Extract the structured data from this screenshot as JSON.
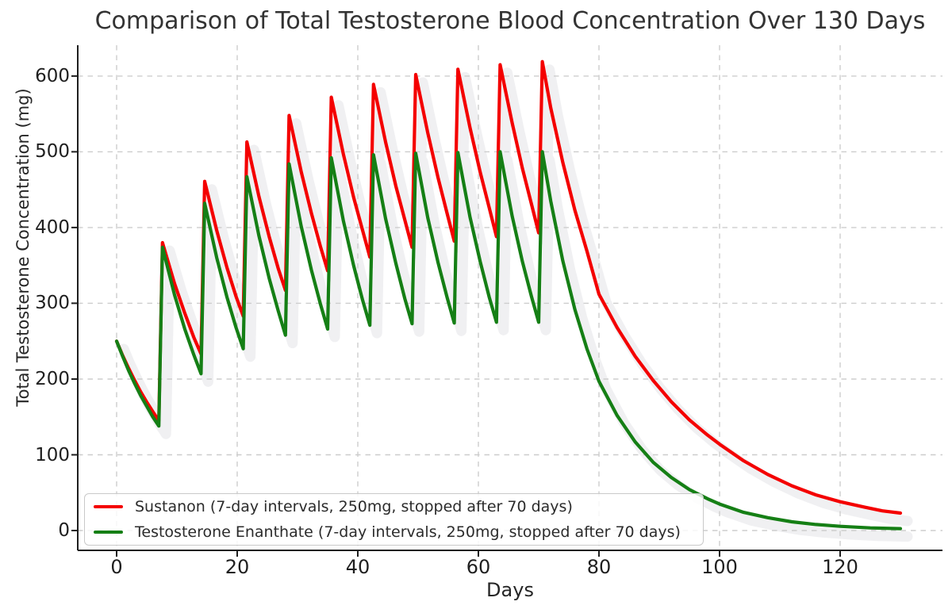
{
  "title": "Comparison of Total Testosterone Blood Concentration Over 130 Days",
  "x_axis": {
    "label": "Days",
    "ticks": [
      0,
      20,
      40,
      60,
      80,
      100,
      120
    ]
  },
  "y_axis": {
    "label": "Total Testosterone Concentration (mg)",
    "ticks": [
      0,
      100,
      200,
      300,
      400,
      500,
      600
    ]
  },
  "legend": {
    "items": [
      {
        "label": "Sustanon (7-day intervals, 250mg, stopped after 70 days)",
        "color": "#f40000"
      },
      {
        "label": "Testosterone Enanthate (7-day intervals, 250mg, stopped after 70 days)",
        "color": "#157f15"
      }
    ]
  },
  "colors": {
    "grid": "#cdcdcd",
    "spine": "#1f1f1f",
    "text": "#262626",
    "shadow": "#f0f0f2",
    "sustanon": "#f40000",
    "enanthate": "#157f15"
  },
  "chart_data": {
    "type": "line",
    "title": "Comparison of Total Testosterone Blood Concentration Over 130 Days",
    "xlabel": "Days",
    "ylabel": "Total Testosterone Concentration (mg)",
    "xlim": [
      -7,
      137
    ],
    "ylim": [
      -26,
      641
    ],
    "x_ticks": [
      0,
      20,
      40,
      60,
      80,
      100,
      120
    ],
    "y_ticks": [
      0,
      100,
      200,
      300,
      400,
      500,
      600
    ],
    "grid": true,
    "legend_position": "lower left",
    "series": [
      {
        "name": "Sustanon (7-day intervals, 250mg, stopped after 70 days)",
        "color": "#f40000",
        "points": [
          [
            0,
            250
          ],
          [
            1,
            231
          ],
          [
            2,
            214
          ],
          [
            3,
            198
          ],
          [
            4,
            183
          ],
          [
            5,
            169.5
          ],
          [
            6,
            157
          ],
          [
            7,
            145
          ],
          [
            7.6,
            380
          ],
          [
            9.6,
            326
          ],
          [
            11.3,
            287
          ],
          [
            12.8,
            255
          ],
          [
            14,
            233
          ],
          [
            14.6,
            461
          ],
          [
            16.6,
            396
          ],
          [
            18.3,
            347
          ],
          [
            19.8,
            309
          ],
          [
            21,
            283
          ],
          [
            21.6,
            513
          ],
          [
            23.6,
            441
          ],
          [
            25.3,
            388
          ],
          [
            26.8,
            346
          ],
          [
            28,
            317
          ],
          [
            28.6,
            548
          ],
          [
            30.6,
            474
          ],
          [
            32.3,
            419
          ],
          [
            33.8,
            375
          ],
          [
            35,
            343
          ],
          [
            35.6,
            572
          ],
          [
            37.6,
            497
          ],
          [
            39.3,
            440
          ],
          [
            40.8,
            396
          ],
          [
            42,
            361
          ],
          [
            42.6,
            589
          ],
          [
            44.6,
            513
          ],
          [
            46.3,
            455
          ],
          [
            47.8,
            410
          ],
          [
            49,
            374
          ],
          [
            49.6,
            602
          ],
          [
            51.6,
            525
          ],
          [
            53.3,
            466
          ],
          [
            54.8,
            419
          ],
          [
            56,
            382
          ],
          [
            56.6,
            609
          ],
          [
            58.6,
            532
          ],
          [
            60.3,
            473
          ],
          [
            61.8,
            426
          ],
          [
            63,
            388
          ],
          [
            63.6,
            615
          ],
          [
            65.6,
            538
          ],
          [
            67.3,
            478
          ],
          [
            68.8,
            431
          ],
          [
            70,
            393
          ],
          [
            70.6,
            619
          ],
          [
            72,
            558
          ],
          [
            74,
            486
          ],
          [
            76,
            423
          ],
          [
            78,
            369
          ],
          [
            80,
            312
          ],
          [
            83,
            268
          ],
          [
            86,
            230
          ],
          [
            89,
            198
          ],
          [
            92,
            170
          ],
          [
            95,
            146
          ],
          [
            98,
            126
          ],
          [
            100,
            114
          ],
          [
            104,
            92
          ],
          [
            108,
            74
          ],
          [
            112,
            59
          ],
          [
            116,
            47
          ],
          [
            120,
            38
          ],
          [
            124,
            31
          ],
          [
            127,
            26
          ],
          [
            130,
            23
          ]
        ]
      },
      {
        "name": "Testosterone Enanthate (7-day intervals, 250mg, stopped after 70 days)",
        "color": "#157f15",
        "points": [
          [
            0,
            250
          ],
          [
            1,
            230
          ],
          [
            2,
            211
          ],
          [
            3,
            194
          ],
          [
            4,
            178
          ],
          [
            5,
            164
          ],
          [
            6,
            150
          ],
          [
            7,
            138
          ],
          [
            7.6,
            374
          ],
          [
            9.6,
            311
          ],
          [
            11.3,
            266
          ],
          [
            12.8,
            232
          ],
          [
            14,
            207
          ],
          [
            14.6,
            432
          ],
          [
            16.6,
            360
          ],
          [
            18.3,
            308
          ],
          [
            19.8,
            268
          ],
          [
            21,
            240
          ],
          [
            21.6,
            467
          ],
          [
            23.6,
            389
          ],
          [
            25.3,
            333
          ],
          [
            26.8,
            290
          ],
          [
            28,
            258
          ],
          [
            28.6,
            484
          ],
          [
            30.6,
            402
          ],
          [
            32.3,
            344
          ],
          [
            33.8,
            299
          ],
          [
            35,
            266
          ],
          [
            35.6,
            492
          ],
          [
            37.6,
            409
          ],
          [
            39.3,
            350
          ],
          [
            40.8,
            304
          ],
          [
            42,
            271
          ],
          [
            42.6,
            496
          ],
          [
            44.6,
            412
          ],
          [
            46.3,
            353
          ],
          [
            47.8,
            306
          ],
          [
            49,
            273
          ],
          [
            49.6,
            498
          ],
          [
            51.6,
            413
          ],
          [
            53.3,
            354
          ],
          [
            54.8,
            308
          ],
          [
            56,
            274
          ],
          [
            56.6,
            499
          ],
          [
            58.6,
            414
          ],
          [
            60.3,
            355
          ],
          [
            61.8,
            308
          ],
          [
            63,
            275
          ],
          [
            63.6,
            500
          ],
          [
            65.6,
            415
          ],
          [
            67.3,
            355
          ],
          [
            68.8,
            309
          ],
          [
            70,
            275
          ],
          [
            70.6,
            500
          ],
          [
            72,
            435
          ],
          [
            74,
            356
          ],
          [
            76,
            292
          ],
          [
            78,
            240
          ],
          [
            80,
            197
          ],
          [
            83,
            152
          ],
          [
            86,
            117
          ],
          [
            89,
            90
          ],
          [
            92,
            70
          ],
          [
            95,
            54
          ],
          [
            98,
            42
          ],
          [
            100,
            35
          ],
          [
            104,
            24
          ],
          [
            108,
            17
          ],
          [
            112,
            11.5
          ],
          [
            116,
            8
          ],
          [
            120,
            5.5
          ],
          [
            125,
            3.5
          ],
          [
            130,
            2.5
          ]
        ]
      }
    ]
  }
}
